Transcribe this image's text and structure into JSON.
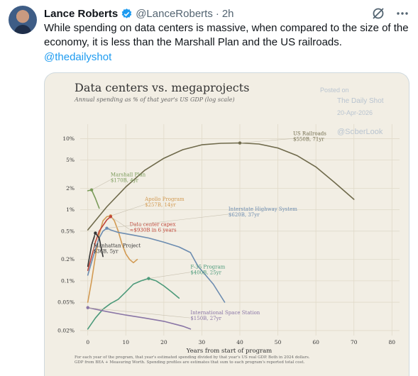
{
  "tweet": {
    "author_name": "Lance Roberts",
    "handle": "@LanceRoberts",
    "separator": "·",
    "time": "2h",
    "text": "While spending on data centers is massive, when compared to the size of the economy, it is less than the Marshall Plan and the US railroads.",
    "mention": "@thedailyshot"
  },
  "icons": {
    "verified": "verified-badge-icon",
    "grok": "grok-icon",
    "more": "more-options-icon"
  },
  "colors": {
    "accent": "#1d9bf0",
    "chart_bg": "#f2eee4"
  },
  "watermark": {
    "line1": "Posted on",
    "line2": "The Daily Shot",
    "line3": "20-Apr-2026",
    "line4": "@SoberLook"
  },
  "chart_data": {
    "type": "line",
    "title": "Data centers vs. megaprojects",
    "subtitle": "Annual spending as % of that year's US GDP (log scale)",
    "xlabel": "Years from start of program",
    "ylabel": "",
    "xlim": [
      -2,
      82
    ],
    "ylim": [
      0.017,
      16
    ],
    "log_y": true,
    "x_ticks": [
      0,
      10,
      20,
      30,
      40,
      50,
      60,
      70,
      80
    ],
    "y_ticks": [
      {
        "value": 10,
        "label": "10%"
      },
      {
        "value": 5,
        "label": "5%"
      },
      {
        "value": 2,
        "label": "2%"
      },
      {
        "value": 1,
        "label": "1%"
      },
      {
        "value": 0.5,
        "label": "0.5%"
      },
      {
        "value": 0.2,
        "label": "0.2%"
      },
      {
        "value": 0.1,
        "label": "0.1%"
      },
      {
        "value": 0.05,
        "label": "0.05%"
      },
      {
        "value": 0.02,
        "label": "0.02%"
      }
    ],
    "grid": true,
    "footnote1": "For each year of the program, that year's estimated spending divided by that year's US real GDP. Both in 2024 dollars.",
    "footnote2": "GDP from BEA + Measuring Worth. Spending profiles are estimates that sum to each program's reported total cost.",
    "series": [
      {
        "name": "US Railroads",
        "detail": "$550B, 71yr",
        "color": "#6f6a4b",
        "x": [
          0,
          5,
          10,
          15,
          20,
          25,
          30,
          35,
          40,
          45,
          50,
          55,
          60,
          65,
          70
        ],
        "y": [
          0.52,
          1.1,
          2.1,
          3.6,
          5.3,
          7.0,
          8.2,
          8.6,
          8.7,
          8.4,
          7.4,
          5.8,
          4.0,
          2.4,
          1.4
        ],
        "peak": [
          40,
          8.7
        ],
        "label_pos": [
          54,
          11
        ]
      },
      {
        "name": "Marshall Plan",
        "detail": "$170B, 4yr",
        "color": "#7a9b5a",
        "x": [
          0,
          1,
          2,
          3
        ],
        "y": [
          1.85,
          1.9,
          1.45,
          1.05
        ],
        "peak": [
          1,
          1.9
        ],
        "label_pos": [
          6,
          2.9
        ]
      },
      {
        "name": "Apollo Program",
        "detail": "$257B, 14yr",
        "color": "#d29a52",
        "x": [
          0,
          1,
          2,
          3,
          4,
          5,
          6,
          7,
          8,
          9,
          10,
          11,
          12,
          13
        ],
        "y": [
          0.05,
          0.1,
          0.22,
          0.45,
          0.7,
          0.8,
          0.82,
          0.7,
          0.5,
          0.33,
          0.24,
          0.2,
          0.18,
          0.2
        ],
        "peak": [
          6,
          0.82
        ],
        "label_pos": [
          15,
          1.3
        ]
      },
      {
        "name": "Data center capex",
        "detail": "≈$930B in 6 years",
        "color": "#c0463a",
        "x": [
          0,
          1,
          2,
          3,
          4,
          5,
          6
        ],
        "y": [
          0.14,
          0.22,
          0.35,
          0.5,
          0.6,
          0.72,
          0.8
        ],
        "peak": [
          6,
          0.8
        ],
        "label_pos": [
          11,
          0.58
        ]
      },
      {
        "name": "Interstate Highway System",
        "detail": "$620B, 37yr",
        "color": "#6c8cb0",
        "x": [
          0,
          2,
          3,
          4,
          5,
          6,
          8,
          12,
          16,
          20,
          24,
          27,
          28,
          29,
          31,
          33,
          36
        ],
        "y": [
          0.12,
          0.28,
          0.4,
          0.5,
          0.55,
          0.52,
          0.48,
          0.44,
          0.4,
          0.35,
          0.3,
          0.25,
          0.2,
          0.16,
          0.12,
          0.09,
          0.05
        ],
        "peak": [
          5,
          0.55
        ],
        "label_pos": [
          37,
          0.95
        ]
      },
      {
        "name": "Manhattan Project",
        "detail": "$36B, 5yr",
        "color": "#333333",
        "x": [
          0,
          1,
          2,
          3,
          4
        ],
        "y": [
          0.16,
          0.32,
          0.47,
          0.4,
          0.22
        ],
        "peak": [
          2,
          0.47
        ],
        "label_pos": [
          1.5,
          0.29
        ]
      },
      {
        "name": "F-35 Program",
        "detail": "$400B, 25yr",
        "color": "#4c9a7a",
        "x": [
          0,
          2,
          4,
          6,
          8,
          10,
          12,
          14,
          16,
          18,
          20,
          22,
          24
        ],
        "y": [
          0.021,
          0.03,
          0.04,
          0.048,
          0.055,
          0.07,
          0.09,
          0.1,
          0.108,
          0.1,
          0.085,
          0.07,
          0.057
        ],
        "peak": [
          16,
          0.108
        ],
        "label_pos": [
          27,
          0.145
        ]
      },
      {
        "name": "International Space Station",
        "detail": "$150B, 27yr",
        "color": "#8a76a6",
        "x": [
          0,
          5,
          10,
          15,
          20,
          25,
          27
        ],
        "y": [
          0.042,
          0.037,
          0.033,
          0.03,
          0.027,
          0.023,
          0.021
        ],
        "peak": [
          0,
          0.042
        ],
        "label_pos": [
          27,
          0.033
        ]
      }
    ]
  }
}
